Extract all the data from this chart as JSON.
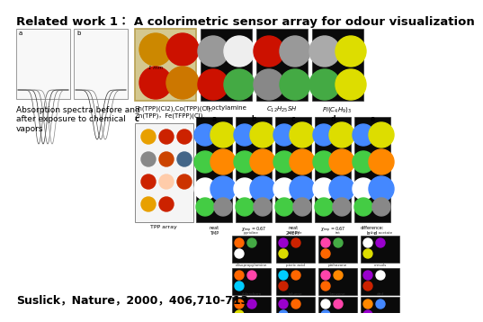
{
  "title": "Related work 1： A colorimetric sensor array for odour visualization",
  "title_fontsize": 9.5,
  "title_fontweight": "bold",
  "background_color": "#ffffff",
  "citation": "Suslick，Nature，2000，406,710-713",
  "citation_fontsize": 9,
  "citation_fontweight": "bold",
  "absorption_label": "Absorption spectra before and\nafter exposure to chemical\nvapors",
  "absorption_label_fontsize": 6.5,
  "compound_label": "Sn(TPP)(Cl2),Co(TPP)(Cl),\nZn(TPP)，Fe(TFPP)(Cl),",
  "compound_label_fontsize": 5.0
}
